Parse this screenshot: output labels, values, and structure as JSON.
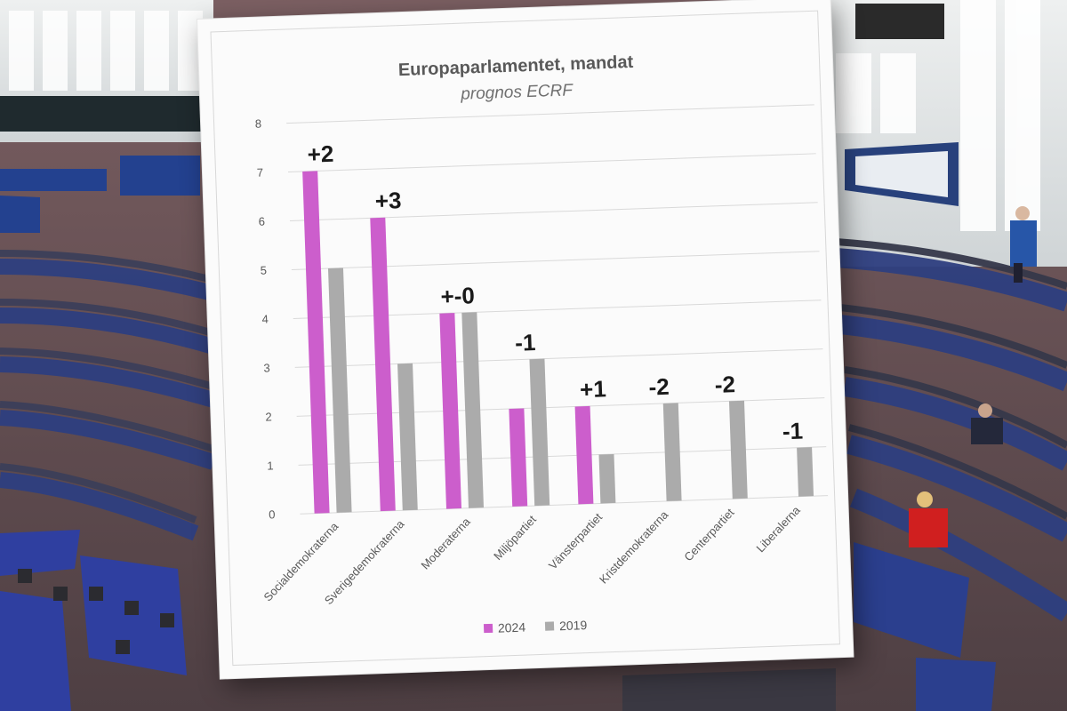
{
  "colors": {
    "series_2024": "#cc5ecc",
    "series_2019": "#ababab",
    "gridline": "#d9d9d9",
    "axis_text": "#595959",
    "change_label": "#1a1a1a"
  },
  "chart_data": {
    "type": "bar",
    "title": "Europaparlamentet, mandat",
    "subtitle": "prognos ECRF",
    "xlabel": "",
    "ylabel": "",
    "ylim": [
      0,
      8
    ],
    "yticks": [
      "0",
      "1",
      "2",
      "3",
      "4",
      "5",
      "6",
      "7",
      "8"
    ],
    "grid": true,
    "legend_position": "bottom",
    "categories": [
      "Socialdemokraterna",
      "Sverigedemokraterna",
      "Moderaterna",
      "Miljöpartiet",
      "Vänsterpartiet",
      "Kristdemokraterna",
      "Centerpartiet",
      "Liberalerna"
    ],
    "series": [
      {
        "name": "2024",
        "values": [
          7,
          6,
          4,
          2,
          2,
          0,
          0,
          0
        ]
      },
      {
        "name": "2019",
        "values": [
          5,
          3,
          4,
          3,
          1,
          2,
          2,
          1
        ]
      }
    ],
    "annotations": [
      "+2",
      "+3",
      "+-0",
      "-1",
      "+1",
      "-2",
      "-2",
      "-1"
    ]
  }
}
